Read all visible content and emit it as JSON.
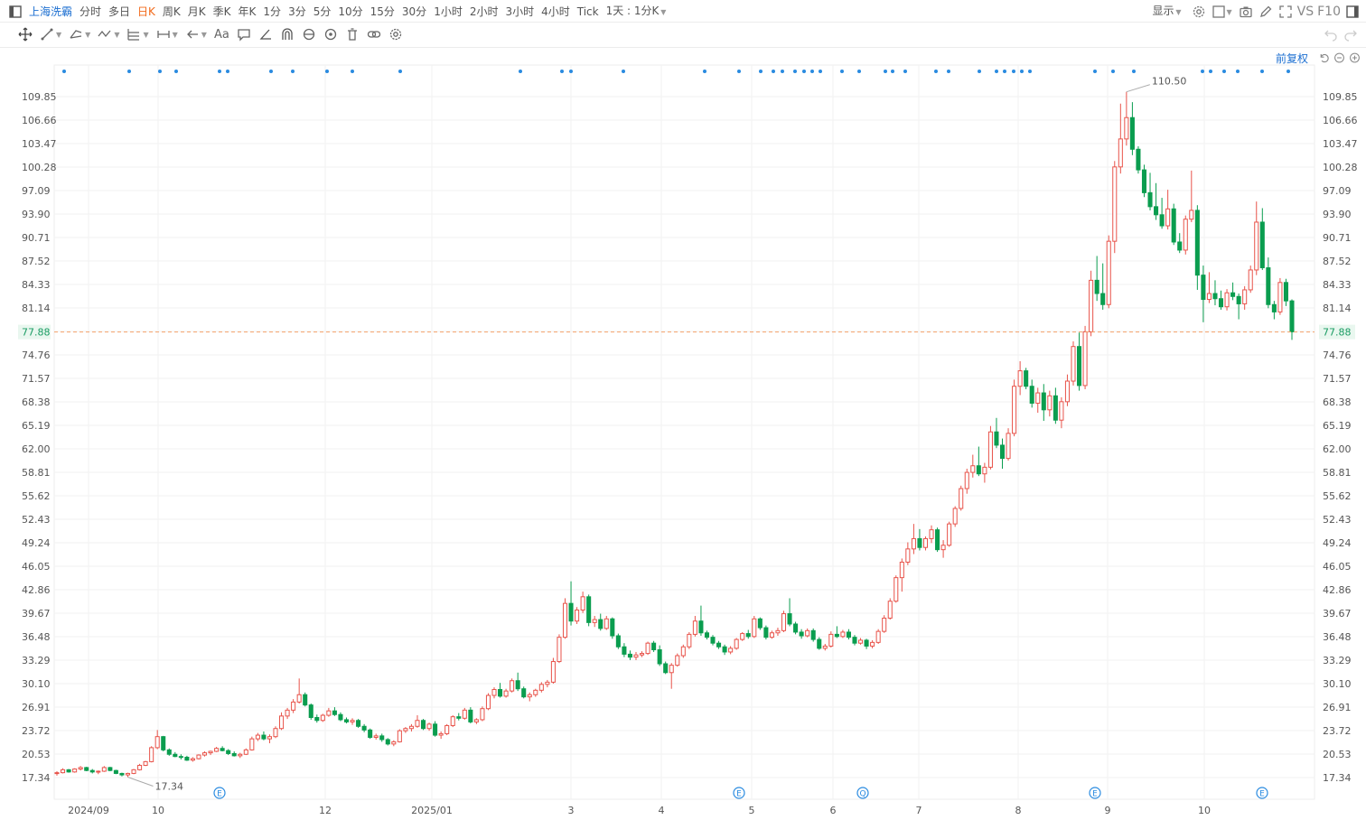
{
  "toolbar": {
    "stock_name": "上海洗霸",
    "periods": [
      "分时",
      "多日",
      "日K",
      "周K",
      "月K",
      "季K",
      "年K",
      "1分",
      "3分",
      "5分",
      "10分",
      "15分",
      "30分",
      "1小时",
      "2小时",
      "3小时",
      "4小时",
      "Tick"
    ],
    "active_period": "日K",
    "interval_label": "1天 : 1分K",
    "display_label": "显示",
    "vs_label": "VS",
    "f10_label": "F10"
  },
  "adjust_label": "前复权",
  "colors": {
    "up": "#e8534a",
    "down": "#0a9d4f",
    "accent": "#f26a1b",
    "link": "#1c6fd1",
    "marker": "#2a8be0",
    "price_line": "#f7a36b"
  },
  "chart_data": {
    "type": "candlestick",
    "y_ticks": [
      "109.85",
      "106.66",
      "103.47",
      "100.28",
      "97.09",
      "93.90",
      "90.71",
      "87.52",
      "84.33",
      "81.14",
      "77.88",
      "74.76",
      "71.57",
      "68.38",
      "65.19",
      "62.00",
      "58.81",
      "55.62",
      "52.43",
      "49.24",
      "46.05",
      "42.86",
      "39.67",
      "36.48",
      "33.29",
      "30.10",
      "26.91",
      "23.72",
      "20.53",
      "17.34"
    ],
    "ylim": [
      17.34,
      109.85
    ],
    "x_ticks": [
      "2024/09",
      "10",
      "12",
      "2025/01",
      "3",
      "4",
      "5",
      "6",
      "7",
      "8",
      "9",
      "10"
    ],
    "current_price": "77.88",
    "high_annotation": "110.50",
    "low_annotation": "17.34",
    "event_markers": [
      "E",
      "E",
      "Q",
      "E",
      "E"
    ],
    "ohlc": [
      [
        17.9,
        18.2,
        17.6,
        18.0
      ],
      [
        18.0,
        18.6,
        17.9,
        18.4
      ],
      [
        18.4,
        18.5,
        18.0,
        18.1
      ],
      [
        18.1,
        18.6,
        18.0,
        18.5
      ],
      [
        18.5,
        18.9,
        18.3,
        18.7
      ],
      [
        18.7,
        18.8,
        18.2,
        18.3
      ],
      [
        18.3,
        18.5,
        17.9,
        18.1
      ],
      [
        18.1,
        18.3,
        17.8,
        18.2
      ],
      [
        18.2,
        18.9,
        18.1,
        18.7
      ],
      [
        18.7,
        18.8,
        18.2,
        18.3
      ],
      [
        18.3,
        18.4,
        17.8,
        17.9
      ],
      [
        17.9,
        18.0,
        17.5,
        17.7
      ],
      [
        17.7,
        18.0,
        17.4,
        17.9
      ],
      [
        17.9,
        18.5,
        17.8,
        18.4
      ],
      [
        18.4,
        19.2,
        18.3,
        19.0
      ],
      [
        19.0,
        19.6,
        18.9,
        19.5
      ],
      [
        19.5,
        21.6,
        19.4,
        21.4
      ],
      [
        21.4,
        23.8,
        21.2,
        22.9
      ],
      [
        22.9,
        23.0,
        20.9,
        21.1
      ],
      [
        21.1,
        21.3,
        20.3,
        20.5
      ],
      [
        20.5,
        20.8,
        20.1,
        20.2
      ],
      [
        20.2,
        20.5,
        19.8,
        20.1
      ],
      [
        20.1,
        20.3,
        19.6,
        19.7
      ],
      [
        19.7,
        20.1,
        19.5,
        19.9
      ],
      [
        19.9,
        20.5,
        19.8,
        20.4
      ],
      [
        20.4,
        20.9,
        20.2,
        20.7
      ],
      [
        20.7,
        21.0,
        20.4,
        20.9
      ],
      [
        20.9,
        21.5,
        20.8,
        21.3
      ],
      [
        21.3,
        21.6,
        20.9,
        21.0
      ],
      [
        21.0,
        21.2,
        20.4,
        20.6
      ],
      [
        20.6,
        20.9,
        20.2,
        20.3
      ],
      [
        20.3,
        20.7,
        20.0,
        20.5
      ],
      [
        20.5,
        21.3,
        20.4,
        21.1
      ],
      [
        21.1,
        22.9,
        21.0,
        22.6
      ],
      [
        22.6,
        23.4,
        22.3,
        23.1
      ],
      [
        23.1,
        23.6,
        22.4,
        22.6
      ],
      [
        22.6,
        23.2,
        22.0,
        22.9
      ],
      [
        22.9,
        24.3,
        22.7,
        24.0
      ],
      [
        24.0,
        26.2,
        23.8,
        25.7
      ],
      [
        25.7,
        26.8,
        25.3,
        26.5
      ],
      [
        26.5,
        28.0,
        26.1,
        27.6
      ],
      [
        27.6,
        30.8,
        27.4,
        28.6
      ],
      [
        28.6,
        28.9,
        27.0,
        27.2
      ],
      [
        27.2,
        27.4,
        25.2,
        25.5
      ],
      [
        25.5,
        25.9,
        24.8,
        25.1
      ],
      [
        25.1,
        26.0,
        24.9,
        25.8
      ],
      [
        25.8,
        26.8,
        25.6,
        26.4
      ],
      [
        26.4,
        26.9,
        25.7,
        25.9
      ],
      [
        25.9,
        26.2,
        25.0,
        25.2
      ],
      [
        25.2,
        25.5,
        24.7,
        24.9
      ],
      [
        24.9,
        25.4,
        24.5,
        25.1
      ],
      [
        25.1,
        25.3,
        24.1,
        24.3
      ],
      [
        24.3,
        24.6,
        23.5,
        23.8
      ],
      [
        23.8,
        24.0,
        22.6,
        22.8
      ],
      [
        22.8,
        23.3,
        22.5,
        23.0
      ],
      [
        23.0,
        23.3,
        22.2,
        22.5
      ],
      [
        22.5,
        22.7,
        21.7,
        21.9
      ],
      [
        21.9,
        22.4,
        21.6,
        22.2
      ],
      [
        22.2,
        23.9,
        22.1,
        23.7
      ],
      [
        23.7,
        24.2,
        23.4,
        24.0
      ],
      [
        24.0,
        24.6,
        23.6,
        24.3
      ],
      [
        24.3,
        25.8,
        24.1,
        25.1
      ],
      [
        25.1,
        25.3,
        23.8,
        24.0
      ],
      [
        24.0,
        24.8,
        23.7,
        24.6
      ],
      [
        24.6,
        25.0,
        22.9,
        23.1
      ],
      [
        23.1,
        23.6,
        22.6,
        23.3
      ],
      [
        23.3,
        24.6,
        23.1,
        24.4
      ],
      [
        24.4,
        25.8,
        24.2,
        25.6
      ],
      [
        25.6,
        26.1,
        25.1,
        25.4
      ],
      [
        25.4,
        26.8,
        25.2,
        26.5
      ],
      [
        26.5,
        26.9,
        24.7,
        24.9
      ],
      [
        24.9,
        25.4,
        24.6,
        25.2
      ],
      [
        25.2,
        27.0,
        25.0,
        26.7
      ],
      [
        26.7,
        28.8,
        26.5,
        28.5
      ],
      [
        28.5,
        29.6,
        28.1,
        29.3
      ],
      [
        29.3,
        30.2,
        28.2,
        28.4
      ],
      [
        28.4,
        29.4,
        28.2,
        29.1
      ],
      [
        29.1,
        30.8,
        28.9,
        30.5
      ],
      [
        30.5,
        31.6,
        29.1,
        29.4
      ],
      [
        29.4,
        29.7,
        28.1,
        28.3
      ],
      [
        28.3,
        28.9,
        27.7,
        28.6
      ],
      [
        28.6,
        29.4,
        28.3,
        29.2
      ],
      [
        29.2,
        30.3,
        28.9,
        30.0
      ],
      [
        30.0,
        30.6,
        29.6,
        30.3
      ],
      [
        30.3,
        33.6,
        30.1,
        33.1
      ],
      [
        33.1,
        36.8,
        32.9,
        36.4
      ],
      [
        36.4,
        41.7,
        36.2,
        41.0
      ],
      [
        41.0,
        44.0,
        38.0,
        38.6
      ],
      [
        38.6,
        40.5,
        38.2,
        40.1
      ],
      [
        40.1,
        42.6,
        39.7,
        41.9
      ],
      [
        41.9,
        42.2,
        37.9,
        38.4
      ],
      [
        38.4,
        39.3,
        37.8,
        38.8
      ],
      [
        38.8,
        39.6,
        37.3,
        37.6
      ],
      [
        37.6,
        39.3,
        37.4,
        38.9
      ],
      [
        38.9,
        39.1,
        36.2,
        36.6
      ],
      [
        36.6,
        36.9,
        34.8,
        35.1
      ],
      [
        35.1,
        35.6,
        33.7,
        34.1
      ],
      [
        34.1,
        34.6,
        33.3,
        33.7
      ],
      [
        33.7,
        34.4,
        33.3,
        34.0
      ],
      [
        34.0,
        34.5,
        33.7,
        34.2
      ],
      [
        34.2,
        35.8,
        34.0,
        35.6
      ],
      [
        35.6,
        35.9,
        34.4,
        34.7
      ],
      [
        34.7,
        35.3,
        32.5,
        32.8
      ],
      [
        32.8,
        33.1,
        31.4,
        31.6
      ],
      [
        31.6,
        32.9,
        29.4,
        32.6
      ],
      [
        32.6,
        34.2,
        32.4,
        33.9
      ],
      [
        33.9,
        35.4,
        33.6,
        35.1
      ],
      [
        35.1,
        37.1,
        34.8,
        36.8
      ],
      [
        36.8,
        39.3,
        36.5,
        38.6
      ],
      [
        38.6,
        40.7,
        36.6,
        37.0
      ],
      [
        37.0,
        37.3,
        36.1,
        36.4
      ],
      [
        36.4,
        36.7,
        35.3,
        35.6
      ],
      [
        35.6,
        35.9,
        34.8,
        35.1
      ],
      [
        35.1,
        35.4,
        34.0,
        34.4
      ],
      [
        34.4,
        35.2,
        34.1,
        34.9
      ],
      [
        34.9,
        36.3,
        34.7,
        36.1
      ],
      [
        36.1,
        37.1,
        35.9,
        36.9
      ],
      [
        36.9,
        37.4,
        36.2,
        36.5
      ],
      [
        36.5,
        39.3,
        36.3,
        38.9
      ],
      [
        38.9,
        39.1,
        37.4,
        37.7
      ],
      [
        37.7,
        38.0,
        36.1,
        36.4
      ],
      [
        36.4,
        37.3,
        36.2,
        37.0
      ],
      [
        37.0,
        37.7,
        36.6,
        37.3
      ],
      [
        37.3,
        40.0,
        37.1,
        39.6
      ],
      [
        39.6,
        41.7,
        37.9,
        38.2
      ],
      [
        38.2,
        38.5,
        36.8,
        37.1
      ],
      [
        37.1,
        37.5,
        36.2,
        36.6
      ],
      [
        36.6,
        37.6,
        36.4,
        37.3
      ],
      [
        37.3,
        37.6,
        35.8,
        36.1
      ],
      [
        36.1,
        36.4,
        34.7,
        34.9
      ],
      [
        34.9,
        35.5,
        34.6,
        35.2
      ],
      [
        35.2,
        37.2,
        35.0,
        36.8
      ],
      [
        36.8,
        37.9,
        36.3,
        36.5
      ],
      [
        36.5,
        37.4,
        36.3,
        37.1
      ],
      [
        37.1,
        37.5,
        36.1,
        36.4
      ],
      [
        36.4,
        36.7,
        35.3,
        35.6
      ],
      [
        35.6,
        36.3,
        35.4,
        36.0
      ],
      [
        36.0,
        36.2,
        34.8,
        35.2
      ],
      [
        35.2,
        36.0,
        34.9,
        35.7
      ],
      [
        35.7,
        37.5,
        35.5,
        37.2
      ],
      [
        37.2,
        39.4,
        37.0,
        39.0
      ],
      [
        39.0,
        41.7,
        38.8,
        41.3
      ],
      [
        41.3,
        44.8,
        41.1,
        44.5
      ],
      [
        44.5,
        47.1,
        42.6,
        46.6
      ],
      [
        46.6,
        49.3,
        46.2,
        48.4
      ],
      [
        48.4,
        51.8,
        47.7,
        49.8
      ],
      [
        49.8,
        51.1,
        48.2,
        48.6
      ],
      [
        48.6,
        50.1,
        48.2,
        49.8
      ],
      [
        49.8,
        51.6,
        49.2,
        51.0
      ],
      [
        51.0,
        51.3,
        48.0,
        48.3
      ],
      [
        48.3,
        49.6,
        47.2,
        48.9
      ],
      [
        48.9,
        52.1,
        48.7,
        51.8
      ],
      [
        51.8,
        54.2,
        51.4,
        53.9
      ],
      [
        53.9,
        57.0,
        53.6,
        56.6
      ],
      [
        56.6,
        59.3,
        55.9,
        58.8
      ],
      [
        58.8,
        61.2,
        58.1,
        59.7
      ],
      [
        59.7,
        62.3,
        58.3,
        58.6
      ],
      [
        58.6,
        60.1,
        57.4,
        59.5
      ],
      [
        59.5,
        65.1,
        59.2,
        64.3
      ],
      [
        64.3,
        66.2,
        62.1,
        62.5
      ],
      [
        62.5,
        63.4,
        59.3,
        60.7
      ],
      [
        60.7,
        64.8,
        60.4,
        64.1
      ],
      [
        64.1,
        71.4,
        63.7,
        70.5
      ],
      [
        70.5,
        73.9,
        69.3,
        72.6
      ],
      [
        72.6,
        73.0,
        70.1,
        70.5
      ],
      [
        70.5,
        71.4,
        67.6,
        68.2
      ],
      [
        68.2,
        70.3,
        66.9,
        69.6
      ],
      [
        69.6,
        70.8,
        65.8,
        67.3
      ],
      [
        67.3,
        69.9,
        66.4,
        69.2
      ],
      [
        69.2,
        70.3,
        65.4,
        65.9
      ],
      [
        65.9,
        69.0,
        64.8,
        68.4
      ],
      [
        68.4,
        72.1,
        67.8,
        71.2
      ],
      [
        71.2,
        76.6,
        70.6,
        75.9
      ],
      [
        75.9,
        77.8,
        69.9,
        70.6
      ],
      [
        70.6,
        78.7,
        70.1,
        77.9
      ],
      [
        77.9,
        86.2,
        77.3,
        84.9
      ],
      [
        84.9,
        88.2,
        82.1,
        83.1
      ],
      [
        83.1,
        87.2,
        80.9,
        81.6
      ],
      [
        81.6,
        91.0,
        81.1,
        90.2
      ],
      [
        90.2,
        101.1,
        88.6,
        100.3
      ],
      [
        100.3,
        108.9,
        99.4,
        104.1
      ],
      [
        104.1,
        110.5,
        103.2,
        107.0
      ],
      [
        107.0,
        109.1,
        101.9,
        102.7
      ],
      [
        102.7,
        103.1,
        99.4,
        99.9
      ],
      [
        99.9,
        100.6,
        96.2,
        96.8
      ],
      [
        96.8,
        99.5,
        94.4,
        94.9
      ],
      [
        94.9,
        98.1,
        93.1,
        93.8
      ],
      [
        93.8,
        96.1,
        91.9,
        92.3
      ],
      [
        92.3,
        97.2,
        91.8,
        94.6
      ],
      [
        94.6,
        95.3,
        89.7,
        90.1
      ],
      [
        90.1,
        91.3,
        88.6,
        89.0
      ],
      [
        89.0,
        93.7,
        88.4,
        93.2
      ],
      [
        93.2,
        99.8,
        92.8,
        94.4
      ],
      [
        94.4,
        95.1,
        83.6,
        85.6
      ],
      [
        85.6,
        86.9,
        79.2,
        82.3
      ],
      [
        82.3,
        86.0,
        81.8,
        83.1
      ],
      [
        83.1,
        84.9,
        81.5,
        82.4
      ],
      [
        82.4,
        83.5,
        80.9,
        81.3
      ],
      [
        81.3,
        83.7,
        80.8,
        83.2
      ],
      [
        83.2,
        84.6,
        82.2,
        82.7
      ],
      [
        82.7,
        83.1,
        79.6,
        81.7
      ],
      [
        81.7,
        84.1,
        80.9,
        83.6
      ],
      [
        83.6,
        86.9,
        83.2,
        86.3
      ],
      [
        86.3,
        95.6,
        85.6,
        92.8
      ],
      [
        92.8,
        94.7,
        86.3,
        86.6
      ],
      [
        86.6,
        88.0,
        81.1,
        81.6
      ],
      [
        81.6,
        82.1,
        79.6,
        80.6
      ],
      [
        80.6,
        85.2,
        80.2,
        84.6
      ],
      [
        84.6,
        85.1,
        81.4,
        82.1
      ],
      [
        82.1,
        82.3,
        76.8,
        77.9
      ]
    ]
  }
}
